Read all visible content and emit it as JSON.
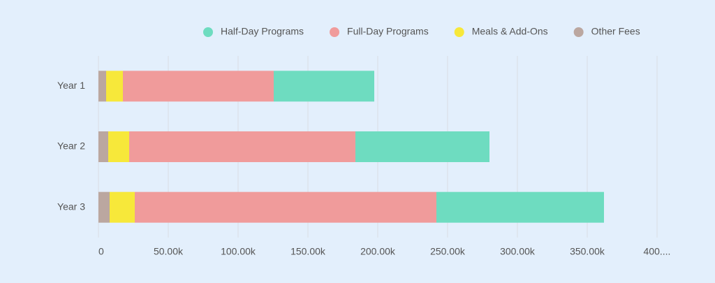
{
  "chart_data": {
    "type": "stacked-hbar",
    "categories": [
      "Year 1",
      "Year 2",
      "Year 3"
    ],
    "series": [
      {
        "name": "Half-Day Programs",
        "color": "#6edcc0",
        "values": [
          72,
          96,
          120
        ]
      },
      {
        "name": "Full-Day Programs",
        "color": "#f09b9b",
        "values": [
          108,
          162,
          216
        ]
      },
      {
        "name": "Meals & Add-Ons",
        "color": "#f7e83a",
        "values": [
          12,
          15,
          18
        ]
      },
      {
        "name": "Other Fees",
        "color": "#bba7a0",
        "values": [
          5.5,
          7,
          8
        ]
      }
    ],
    "xlim": [
      0,
      400
    ],
    "xticks": [
      0,
      {
        "value": 50,
        "label": "50.00k"
      },
      {
        "value": 100,
        "label": "100.00k"
      },
      {
        "value": 150,
        "label": "150.00k"
      },
      {
        "value": 200,
        "label": "200.00k"
      },
      {
        "value": 250,
        "label": "250.00k"
      },
      {
        "value": 300,
        "label": "300.00k"
      },
      {
        "value": 350,
        "label": "350.00k"
      },
      {
        "value": 400,
        "label": "400...."
      }
    ],
    "grid": true,
    "legend": "top"
  }
}
